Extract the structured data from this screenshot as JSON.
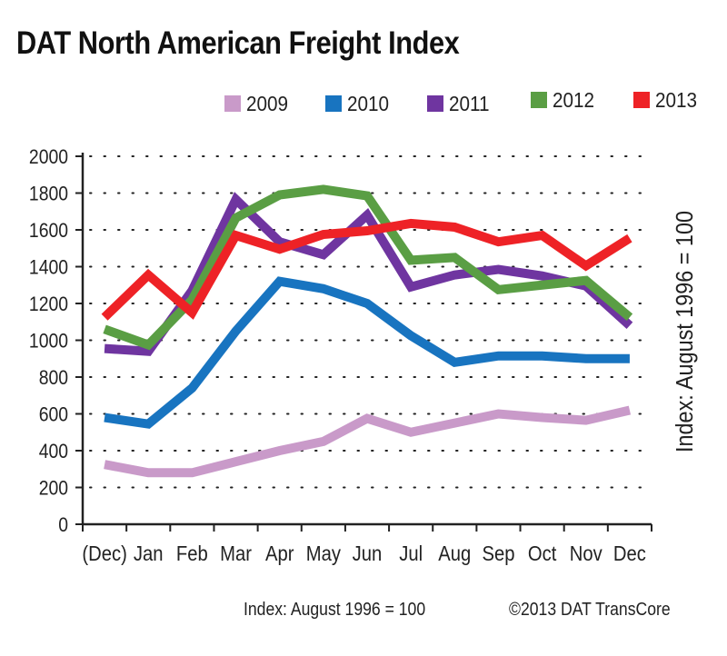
{
  "title": "DAT North American Freight Index",
  "footer": {
    "index_note": "Index: August 1996 = 100",
    "copyright": "©2013 DAT TransCore"
  },
  "chart_data": {
    "type": "line",
    "title": "DAT North American Freight Index",
    "ylabel": "Index: August 1996 = 100",
    "xlabel": "",
    "categories": [
      "(Dec)",
      "Jan",
      "Feb",
      "Mar",
      "Apr",
      "May",
      "Jun",
      "Jul",
      "Aug",
      "Sep",
      "Oct",
      "Nov",
      "Dec"
    ],
    "ylim": [
      0,
      2000
    ],
    "yticks": [
      "0",
      "200",
      "400",
      "600",
      "800",
      "1000",
      "1200",
      "1400",
      "1600",
      "1800",
      "2000"
    ],
    "grid": "horizontal dotted",
    "legend": "top",
    "series": [
      {
        "name": "2009",
        "color": "#c99ac9",
        "values": [
          325,
          280,
          280,
          340,
          400,
          450,
          575,
          500,
          550,
          600,
          580,
          565,
          620
        ]
      },
      {
        "name": "2010",
        "color": "#1874c0",
        "values": [
          580,
          545,
          740,
          1050,
          1320,
          1280,
          1200,
          1025,
          880,
          915,
          915,
          900,
          900
        ]
      },
      {
        "name": "2011",
        "color": "#6f35a0",
        "values": [
          955,
          940,
          1270,
          1765,
          1535,
          1465,
          1680,
          1290,
          1355,
          1385,
          1350,
          1295,
          1080
        ]
      },
      {
        "name": "2012",
        "color": "#5a9e44",
        "values": [
          1060,
          975,
          1220,
          1665,
          1790,
          1820,
          1785,
          1435,
          1450,
          1275,
          1300,
          1325,
          1125
        ]
      },
      {
        "name": "2013",
        "color": "#ee2226",
        "values": [
          1125,
          1355,
          1150,
          1570,
          1495,
          1575,
          1595,
          1635,
          1615,
          1535,
          1570,
          1405,
          1555
        ]
      }
    ]
  }
}
